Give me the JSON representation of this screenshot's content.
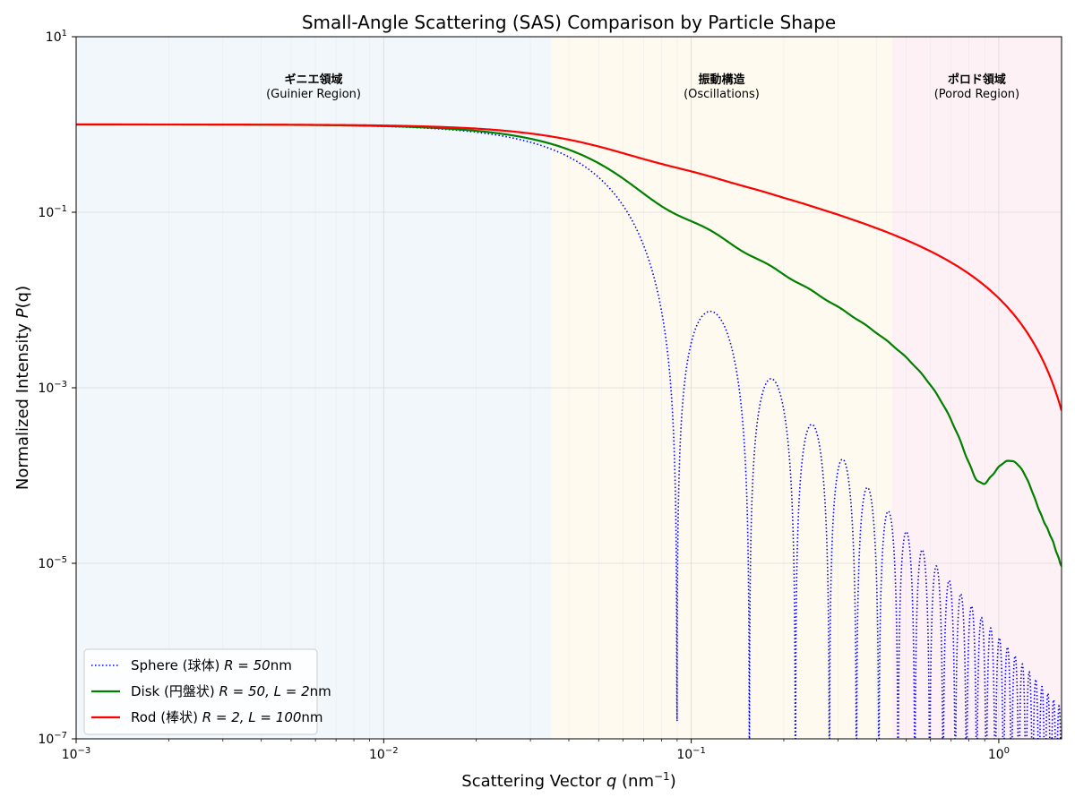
{
  "chart_data": {
    "type": "line",
    "title": "Small-Angle Scattering (SAS) Comparison by Particle Shape",
    "xlabel_prefix": "Scattering Vector ",
    "xlabel_var": "q",
    "xlabel_unit_open": " (nm",
    "xlabel_unit_sup": "−1",
    "xlabel_unit_close": ")",
    "ylabel_prefix": "Normalized Intensity ",
    "ylabel_var": "P",
    "ylabel_args": "(q)",
    "xscale": "log",
    "yscale": "log",
    "xlim": [
      0.001,
      1.6
    ],
    "ylim": [
      1e-07,
      10
    ],
    "grid": true,
    "legend_position": "lower-left",
    "x_ticks": [
      {
        "value": 0.001,
        "base": "10",
        "exp": "−3"
      },
      {
        "value": 0.01,
        "base": "10",
        "exp": "−2"
      },
      {
        "value": 0.1,
        "base": "10",
        "exp": "−1"
      },
      {
        "value": 1,
        "base": "10",
        "exp": "0"
      }
    ],
    "y_ticks": [
      {
        "value": 1e-07,
        "base": "10",
        "exp": "−7"
      },
      {
        "value": 1e-05,
        "base": "10",
        "exp": "−5"
      },
      {
        "value": 0.001,
        "base": "10",
        "exp": "−3"
      },
      {
        "value": 0.1,
        "base": "10",
        "exp": "−1"
      },
      {
        "value": 10,
        "base": "10",
        "exp": "1"
      }
    ],
    "regions": [
      {
        "title": "ギニエ領域",
        "subtitle": "(Guinier Region)",
        "x_range": [
          0.001,
          0.035
        ],
        "color": "#e6f0f8"
      },
      {
        "title": "振動構造",
        "subtitle": "(Oscillations)",
        "x_range": [
          0.035,
          0.45
        ],
        "color": "#fdf6e4"
      },
      {
        "title": "ポロド領域",
        "subtitle": "(Porod Region)",
        "x_range": [
          0.45,
          1.6
        ],
        "color": "#fbe6ee"
      }
    ],
    "series": [
      {
        "key": "sphere",
        "legend_prefix": "Sphere (球体) ",
        "legend_math": "R = 50",
        "legend_suffix": "nm",
        "color": "#0000ff",
        "dash": "dotted",
        "model": "sphere",
        "R": 50
      },
      {
        "key": "disk",
        "legend_prefix": "Disk (円盤状) ",
        "legend_math": "R = 50, L = 2",
        "legend_suffix": "nm",
        "color": "#008000",
        "dash": "solid",
        "model": "disk",
        "R": 50,
        "L": 2
      },
      {
        "key": "rod",
        "legend_prefix": "Rod (棒状) ",
        "legend_math": "R = 2, L = 100",
        "legend_suffix": "nm",
        "color": "#ff0000",
        "dash": "solid",
        "model": "rod",
        "R": 2,
        "L": 100
      }
    ]
  }
}
